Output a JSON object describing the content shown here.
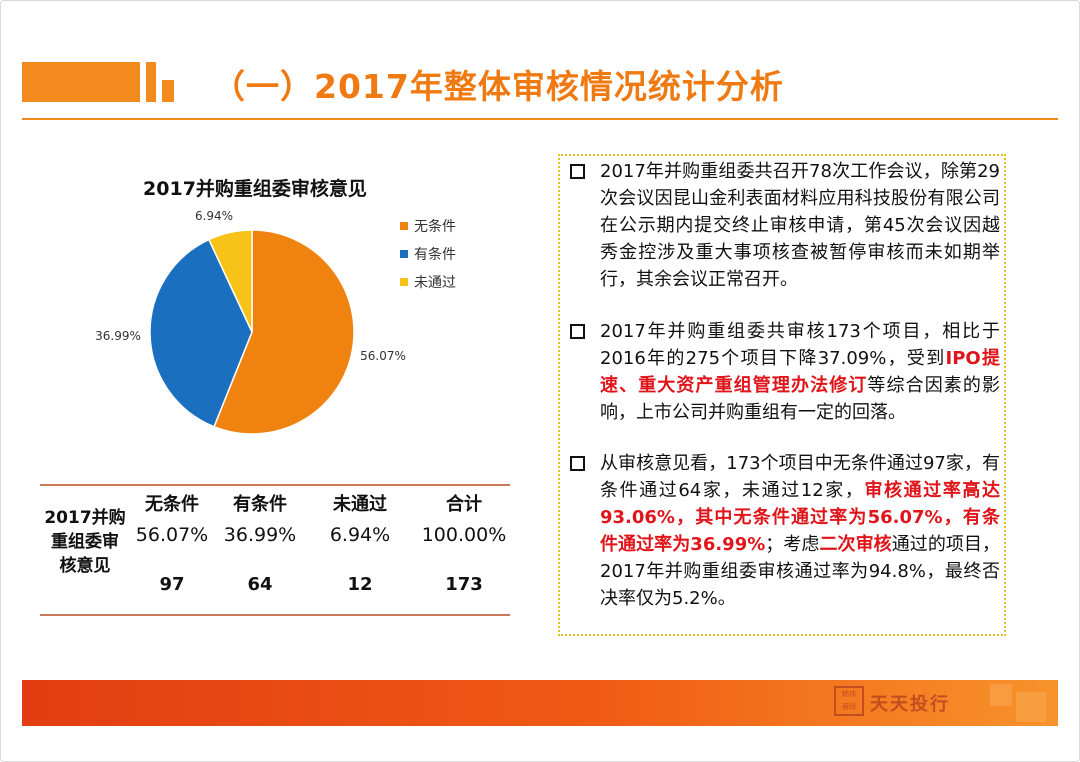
{
  "header": {
    "title": "（一）2017年整体审核情况统计分析"
  },
  "chart_data": {
    "type": "pie",
    "title": "2017并购重组委审核意见",
    "categories": [
      "无条件",
      "有条件",
      "未通过"
    ],
    "values": [
      56.07,
      36.99,
      6.94
    ],
    "labels": [
      "56.07%",
      "36.99%",
      "6.94%"
    ],
    "colors": [
      "#f0830f",
      "#1a6fbe",
      "#f7c319"
    ],
    "legend_position": "right"
  },
  "table": {
    "row_header": [
      "2017并购",
      "重组委审",
      "核意见"
    ],
    "columns": [
      "无条件",
      "有条件",
      "未通过",
      "合计"
    ],
    "percent_row": [
      "56.07%",
      "36.99%",
      "6.94%",
      "100.00%"
    ],
    "count_row": [
      "97",
      "64",
      "12",
      "173"
    ]
  },
  "text": {
    "p1": "2017年并购重组委共召开78次工作会议，除第29次会议因昆山金利表面材料应用科技股份有限公司在公示期内提交终止审核申请，第45次会议因越秀金控涉及重大事项核查被暂停审核而未如期举行，其余会议正常召开。",
    "p2a": "2017年并购重组委共审核173个项目，相比于2016年的275个项目下降37.09%，受到",
    "p2b": "IPO提速、重大资产重组管理办法修订",
    "p2c": "等综合因素的影响，上市公司并购重组有一定的回落。",
    "p3a": "从审核意见看，173个项目中无条件通过97家，有条件通过64家，未通过12家，",
    "p3b": "审核通过率高达93.06%，其中无条件通过率为56.07%，有条件通过率为36.99%",
    "p3c": "；考虑",
    "p3d": "二次审核",
    "p3e": "通过的项目，2017年并购重组委审核通过率为94.8%，最终否决率仅为5.2%。"
  },
  "footer": {
    "seal_text": [
      "韩伟",
      "蔡旸"
    ],
    "brand": "天天投行"
  }
}
